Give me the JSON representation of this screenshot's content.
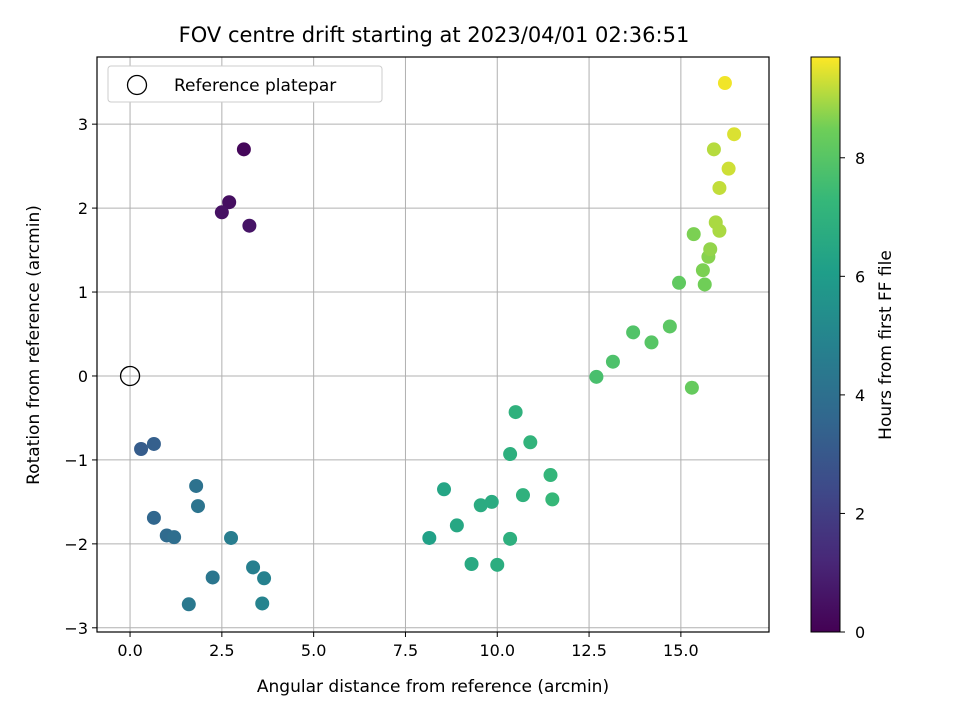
{
  "chart_data": {
    "type": "scatter",
    "title": "FOV centre drift starting at 2023/04/01 02:36:51",
    "xlabel": "Angular distance from reference (arcmin)",
    "ylabel": "Rotation from reference (arcmin)",
    "xlim": [
      -0.9,
      17.4
    ],
    "ylim": [
      -3.05,
      3.8
    ],
    "xticks": [
      0.0,
      2.5,
      5.0,
      7.5,
      10.0,
      12.5,
      15.0
    ],
    "xtick_labels": [
      "0.0",
      "2.5",
      "5.0",
      "7.5",
      "10.0",
      "12.5",
      "15.0"
    ],
    "yticks": [
      -3,
      -2,
      -1,
      0,
      1,
      2,
      3
    ],
    "ytick_labels": [
      "−3",
      "−2",
      "−1",
      "0",
      "1",
      "2",
      "3"
    ],
    "grid": true,
    "legend": {
      "placement": "top-left",
      "entries": [
        {
          "label": "Reference platepar",
          "marker": "open-circle"
        }
      ]
    },
    "reference_point": {
      "x": 0.0,
      "y": 0.0
    },
    "colorbar": {
      "label": "Hours from first FF file",
      "range": [
        0,
        9.7
      ],
      "ticks": [
        0,
        2,
        4,
        6,
        8
      ],
      "tick_labels": [
        "0",
        "2",
        "4",
        "6",
        "8"
      ],
      "colormap": "viridis"
    },
    "points": [
      {
        "x": 3.1,
        "y": 2.7,
        "c": 0.2
      },
      {
        "x": 2.7,
        "y": 2.07,
        "c": 0.4
      },
      {
        "x": 2.5,
        "y": 1.95,
        "c": 0.5
      },
      {
        "x": 3.25,
        "y": 1.79,
        "c": 0.6
      },
      {
        "x": 0.3,
        "y": -0.87,
        "c": 3.2
      },
      {
        "x": 0.65,
        "y": -0.81,
        "c": 3.3
      },
      {
        "x": 0.65,
        "y": -1.69,
        "c": 3.6
      },
      {
        "x": 1.0,
        "y": -1.9,
        "c": 3.8
      },
      {
        "x": 1.2,
        "y": -1.92,
        "c": 3.9
      },
      {
        "x": 1.8,
        "y": -1.31,
        "c": 4.1
      },
      {
        "x": 1.85,
        "y": -1.55,
        "c": 4.2
      },
      {
        "x": 2.25,
        "y": -2.4,
        "c": 4.3
      },
      {
        "x": 1.6,
        "y": -2.72,
        "c": 4.4
      },
      {
        "x": 2.75,
        "y": -1.93,
        "c": 4.6
      },
      {
        "x": 3.35,
        "y": -2.28,
        "c": 4.7
      },
      {
        "x": 3.65,
        "y": -2.41,
        "c": 4.8
      },
      {
        "x": 3.6,
        "y": -2.71,
        "c": 4.9
      },
      {
        "x": 8.15,
        "y": -1.93,
        "c": 6.2
      },
      {
        "x": 8.55,
        "y": -1.35,
        "c": 6.4
      },
      {
        "x": 8.9,
        "y": -1.78,
        "c": 6.5
      },
      {
        "x": 9.3,
        "y": -2.24,
        "c": 6.6
      },
      {
        "x": 9.55,
        "y": -1.54,
        "c": 6.7
      },
      {
        "x": 9.85,
        "y": -1.5,
        "c": 6.7
      },
      {
        "x": 10.0,
        "y": -2.25,
        "c": 6.8
      },
      {
        "x": 10.35,
        "y": -0.93,
        "c": 6.9
      },
      {
        "x": 10.35,
        "y": -1.94,
        "c": 6.9
      },
      {
        "x": 10.5,
        "y": -0.43,
        "c": 7.0
      },
      {
        "x": 10.7,
        "y": -1.42,
        "c": 7.0
      },
      {
        "x": 10.9,
        "y": -0.79,
        "c": 7.1
      },
      {
        "x": 11.45,
        "y": -1.18,
        "c": 7.2
      },
      {
        "x": 11.5,
        "y": -1.47,
        "c": 7.3
      },
      {
        "x": 12.7,
        "y": -0.01,
        "c": 7.7
      },
      {
        "x": 13.15,
        "y": 0.17,
        "c": 7.8
      },
      {
        "x": 13.7,
        "y": 0.52,
        "c": 7.9
      },
      {
        "x": 14.2,
        "y": 0.4,
        "c": 8.0
      },
      {
        "x": 14.7,
        "y": 0.59,
        "c": 8.1
      },
      {
        "x": 14.95,
        "y": 1.11,
        "c": 8.2
      },
      {
        "x": 15.3,
        "y": -0.14,
        "c": 8.3
      },
      {
        "x": 15.35,
        "y": 1.69,
        "c": 8.6
      },
      {
        "x": 15.6,
        "y": 1.26,
        "c": 8.6
      },
      {
        "x": 15.65,
        "y": 1.09,
        "c": 8.5
      },
      {
        "x": 15.75,
        "y": 1.42,
        "c": 8.7
      },
      {
        "x": 15.8,
        "y": 1.51,
        "c": 8.8
      },
      {
        "x": 15.95,
        "y": 1.83,
        "c": 9.0
      },
      {
        "x": 16.05,
        "y": 1.73,
        "c": 9.0
      },
      {
        "x": 15.9,
        "y": 2.7,
        "c": 9.1
      },
      {
        "x": 16.05,
        "y": 2.24,
        "c": 9.2
      },
      {
        "x": 16.3,
        "y": 2.47,
        "c": 9.3
      },
      {
        "x": 16.45,
        "y": 2.88,
        "c": 9.4
      },
      {
        "x": 16.2,
        "y": 3.49,
        "c": 9.6
      }
    ]
  }
}
